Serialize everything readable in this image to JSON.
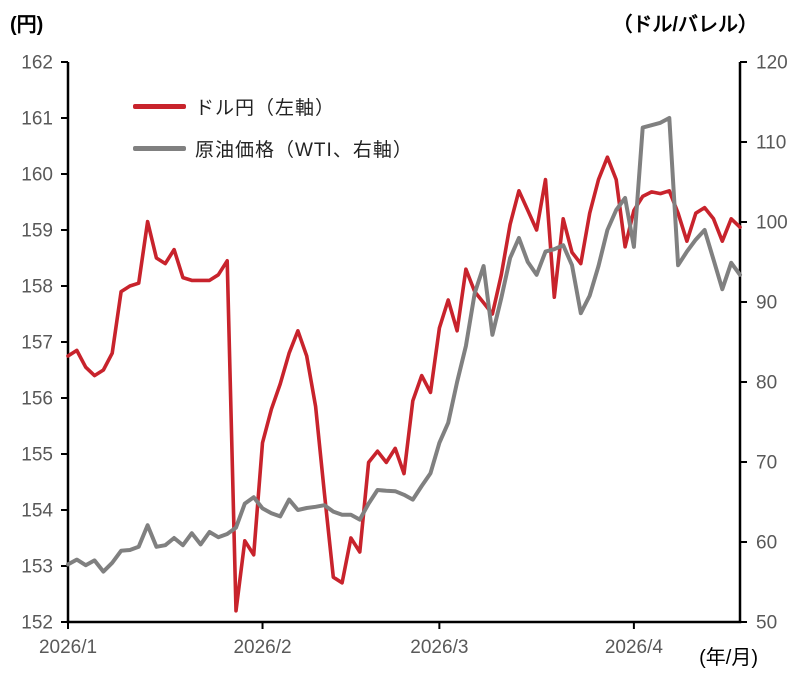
{
  "header": {
    "left_unit": "(円)",
    "right_unit": "（ドル/バレル）",
    "x_unit": "(年/月)"
  },
  "legend": [
    {
      "series_id": "usdjpy",
      "label": "ドル円（左軸）"
    },
    {
      "series_id": "wti",
      "label": "原油価格（WTI、右軸）"
    }
  ],
  "colors": {
    "usdjpy": "#C8232C",
    "wti": "#808080",
    "axis": "#000000",
    "tick_label": "#595959"
  },
  "chart_data": {
    "type": "line",
    "title": "",
    "grid": false,
    "legend_position": "top-left-inside",
    "x_axis": {
      "unit": "(年/月)",
      "ticks": [
        {
          "day": 0,
          "label": "2026/1"
        },
        {
          "day": 22,
          "label": "2026/2"
        },
        {
          "day": 42,
          "label": "2026/3"
        },
        {
          "day": 64,
          "label": "2026/4"
        }
      ],
      "total_days": 77
    },
    "y_left": {
      "unit": "(円)",
      "min": 152,
      "max": 162,
      "tick_step": 1
    },
    "y_right": {
      "unit": "(ドル/バレル)",
      "min": 50,
      "max": 120,
      "tick_step": 10
    },
    "series": [
      {
        "id": "usdjpy",
        "name": "ドル円（左軸）",
        "axis": "left",
        "stroke_width": 3.6,
        "values": [
          156.75,
          156.85,
          156.55,
          156.4,
          156.5,
          156.8,
          157.9,
          158.0,
          158.05,
          159.15,
          158.5,
          158.4,
          158.65,
          158.15,
          158.1,
          158.1,
          158.1,
          158.2,
          158.45,
          152.2,
          153.45,
          153.2,
          155.2,
          155.8,
          156.25,
          156.8,
          157.2,
          156.75,
          155.85,
          154.3,
          152.8,
          152.7,
          153.5,
          153.25,
          154.85,
          155.05,
          154.85,
          155.1,
          154.65,
          155.95,
          156.4,
          156.1,
          157.25,
          157.75,
          157.2,
          158.3,
          157.9,
          157.7,
          157.5,
          158.2,
          159.1,
          159.7,
          159.35,
          159.0,
          159.9,
          157.8,
          159.2,
          158.6,
          158.4,
          159.3,
          159.9,
          160.3,
          159.9,
          158.7,
          159.35,
          159.6,
          159.68,
          159.65,
          159.7,
          159.3,
          158.8,
          159.3,
          159.4,
          159.2,
          158.8,
          159.2,
          159.05
        ]
      },
      {
        "id": "wti",
        "name": "原油価格（WTI、右軸）",
        "axis": "right",
        "stroke_width": 4,
        "values": [
          57.2,
          57.8,
          57.1,
          57.7,
          56.3,
          57.4,
          58.9,
          59.0,
          59.4,
          62.1,
          59.4,
          59.6,
          60.5,
          59.6,
          61.1,
          59.7,
          61.25,
          60.6,
          61.0,
          61.8,
          64.8,
          65.6,
          64.2,
          63.6,
          63.2,
          65.3,
          64.0,
          64.25,
          64.4,
          64.6,
          63.8,
          63.4,
          63.4,
          62.8,
          64.8,
          66.5,
          66.4,
          66.35,
          65.9,
          65.3,
          67.0,
          68.6,
          72.4,
          74.9,
          80.0,
          84.5,
          91.1,
          94.5,
          85.9,
          90.5,
          95.5,
          98.0,
          95.0,
          93.4,
          96.3,
          96.6,
          97.1,
          94.6,
          88.6,
          90.8,
          94.5,
          99.0,
          101.5,
          103.0,
          96.9,
          111.8,
          112.1,
          112.4,
          113.0,
          94.6,
          96.3,
          97.8,
          99.0,
          95.3,
          91.6,
          94.9,
          93.4
        ]
      }
    ]
  }
}
